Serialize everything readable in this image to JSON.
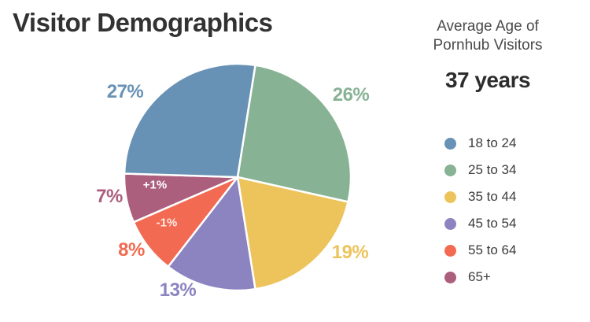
{
  "title": "Visitor Demographics",
  "stat_panel": {
    "heading_line1": "Average Age of",
    "heading_line2": "Pornhub Visitors",
    "value": "37 years"
  },
  "chart_data": {
    "type": "pie",
    "title": "Visitor Demographics",
    "unit": "percent",
    "start_angle_deg": 9,
    "direction": "clockwise",
    "slices": [
      {
        "label": "25 to 34",
        "value": 26,
        "display": "26%",
        "color": "#87b294"
      },
      {
        "label": "35 to 44",
        "value": 19,
        "display": "19%",
        "color": "#edc45c"
      },
      {
        "label": "45 to 54",
        "value": 13,
        "display": "13%",
        "color": "#8b84c1"
      },
      {
        "label": "55 to 64",
        "value": 8,
        "display": "8%",
        "color": "#f26a52",
        "change_label": "-1%"
      },
      {
        "label": "65+",
        "value": 7,
        "display": "7%",
        "color": "#ac5e7d",
        "change_label": "+1%"
      },
      {
        "label": "18 to 24",
        "value": 27,
        "display": "27%",
        "color": "#6792b5"
      }
    ],
    "legend": [
      "18 to 24",
      "25 to 34",
      "35 to 44",
      "45 to 54",
      "55 to 64",
      "65+"
    ],
    "legend_position": "right",
    "annotation_meaning": "year-over-year change shown inside slice"
  }
}
